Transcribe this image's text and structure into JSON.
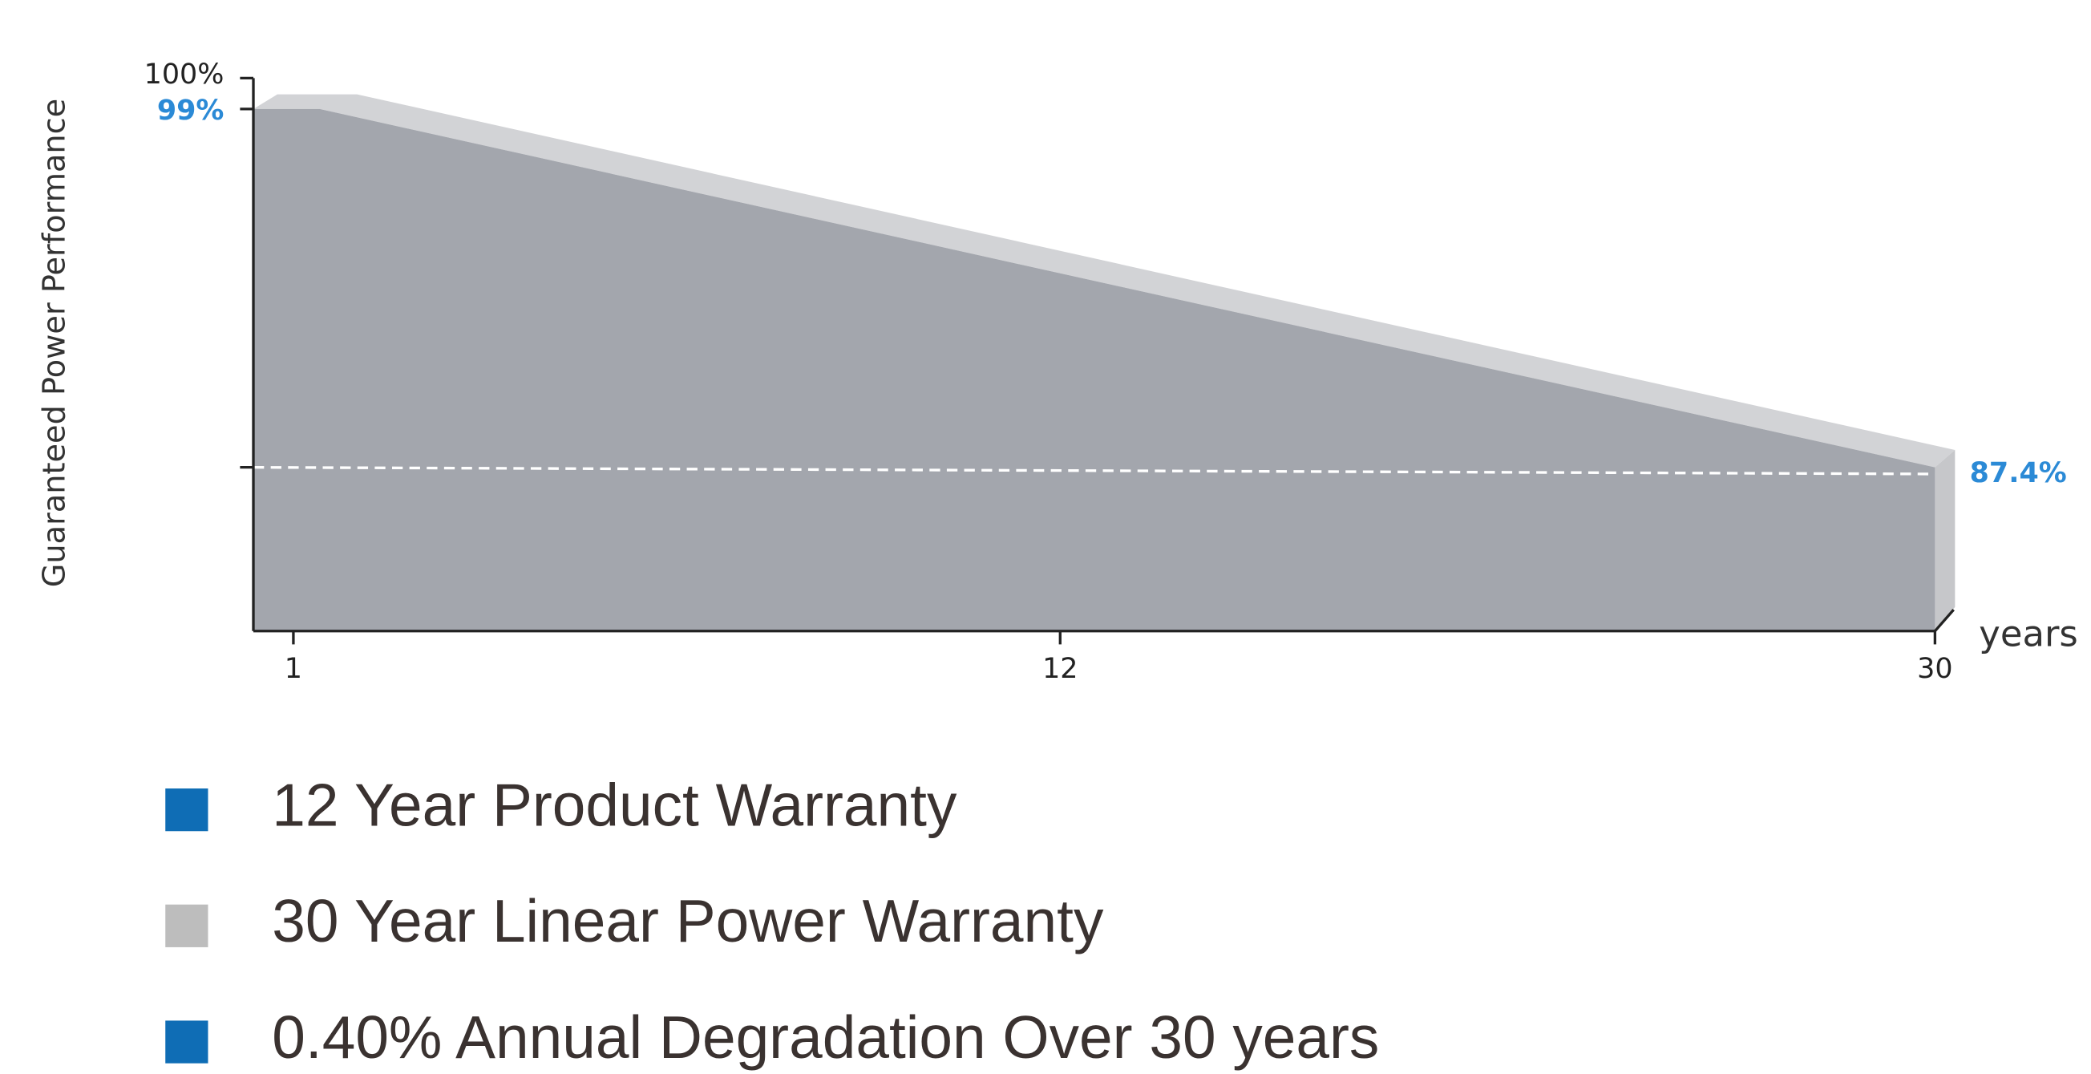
{
  "chart_data": {
    "type": "area",
    "y_axis_label": "Guaranteed Power Performance",
    "x_axis_label": "years",
    "x": [
      1,
      30
    ],
    "values": [
      99,
      87.4
    ],
    "value_labels": [
      "99%",
      "87.4%"
    ],
    "color": "#a3a6ad",
    "label_color": "#2b8ad6",
    "xlim": [
      0.3,
      30
    ],
    "ylim": [
      82.1,
      100.8
    ],
    "xticks": [
      1,
      12,
      30
    ],
    "yticks": [
      {
        "value": 100,
        "label": "100%"
      }
    ],
    "reference_line": 87.4,
    "legend": [
      {
        "name": "12 Year Product Warranty",
        "color": "#0f6db5"
      },
      {
        "name": "30 Year Linear Power Warranty",
        "color": "#bdbdbd"
      },
      {
        "name": "0.40% Annual Degradation Over 30 years",
        "color": "#0f6db5"
      }
    ]
  }
}
